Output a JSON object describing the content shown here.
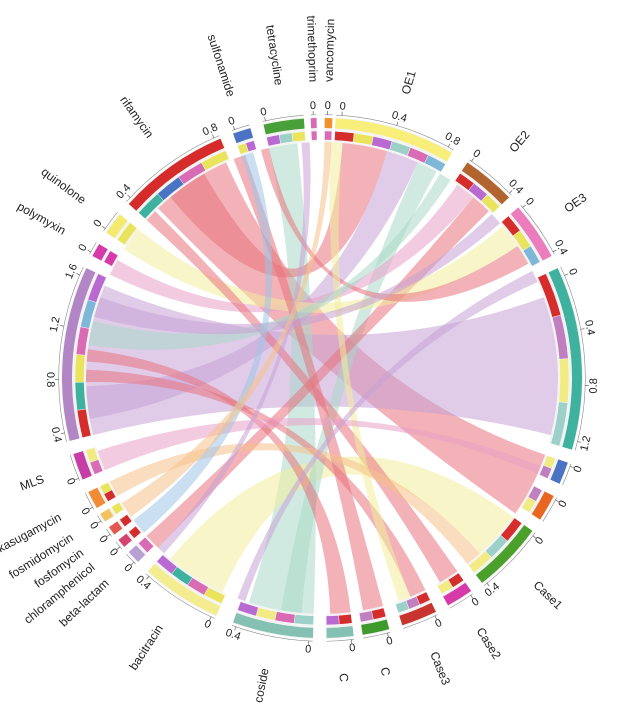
{
  "chart_data": {
    "type": "chord",
    "center": [
      322,
      378
    ],
    "segments": [
      {
        "name": "OE1",
        "start": 3,
        "end": 30,
        "color": "#f7ef7a",
        "stack": [
          "#d42d2b",
          "#e9e45c",
          "#b96ad1",
          "#9dd0c8",
          "#d96bb4",
          "#7fb7d8"
        ],
        "ticks": [
          "0",
          "0.4",
          "0.8"
        ]
      },
      {
        "name": "OE2",
        "start": 34,
        "end": 46,
        "color": "#b2642e",
        "stack": [
          "#d42d2b",
          "#b96ad1",
          "#e9e45c"
        ],
        "ticks": [
          "0",
          "0.4"
        ]
      },
      {
        "name": "OE3",
        "start": 49,
        "end": 62,
        "color": "#ec7dbd",
        "stack": [
          "#d42d2b",
          "#e9e45c",
          "#7fb7d8"
        ],
        "ticks": [
          "0",
          "0.4"
        ]
      },
      {
        "name": "",
        "start": 65,
        "end": 106,
        "color": "#3fb29f",
        "stack": [
          "#d42d2b",
          "#c07fbf",
          "#f2ea83",
          "#9dd0c8"
        ],
        "ticks": [
          "0",
          "0.4",
          "0.8",
          "1.2"
        ]
      },
      {
        "name": "",
        "start": 109,
        "end": 114,
        "color": "#4a73c4",
        "stack": [
          "#f2ea83",
          "#c07fbf"
        ],
        "ticks": [
          "0"
        ]
      },
      {
        "name": "",
        "start": 117,
        "end": 123,
        "color": "#e8661f",
        "stack": [
          "#c07fbf",
          "#f2ea83"
        ],
        "ticks": [
          "0"
        ]
      },
      {
        "name": "Case1",
        "start": 126,
        "end": 142,
        "color": "#4ba02b",
        "stack": [
          "#d42d2b",
          "#9dd0c8",
          "#f2ea83"
        ],
        "ticks": [
          "0",
          "0.4"
        ]
      },
      {
        "name": "Case2",
        "start": 145,
        "end": 151,
        "color": "#d63aa8",
        "stack": [
          "#d42d2b",
          "#f2ea83"
        ],
        "ticks": [
          "0"
        ]
      },
      {
        "name": "Case3",
        "start": 154,
        "end": 162,
        "color": "#c8352f",
        "stack": [
          "#d42d2b",
          "#c07fbf",
          "#9dd0c8"
        ],
        "ticks": [
          "0"
        ]
      },
      {
        "name": "C",
        "start": 165,
        "end": 171,
        "color": "#3f9a2e",
        "stack": [
          "#d42d2b",
          "#c07fbf"
        ],
        "ticks": [
          "0"
        ]
      },
      {
        "name": "C",
        "start": 173,
        "end": 179,
        "color": "#84c1b3",
        "stack": [
          "#d42d2b",
          "#b96ad1"
        ],
        "ticks": [
          "0"
        ]
      },
      {
        "name": "coside",
        "start": 182,
        "end": 200,
        "color": "#84c1b3",
        "stack": [
          "#9dd0c8",
          "#d96bb4",
          "#f2ea83",
          "#b96ad1"
        ],
        "ticks": [
          "0",
          "0.4"
        ]
      },
      {
        "name": "bacitracin",
        "start": 204,
        "end": 222,
        "color": "#f4ed8f",
        "stack": [
          "#e9e45c",
          "#d96bb4",
          "#3fb29f",
          "#b96ad1"
        ],
        "ticks": [
          "0",
          "0.4"
        ]
      },
      {
        "name": "beta-lactam",
        "start": 225,
        "end": 228,
        "color": "#b8a0d3",
        "stack": [
          "#d96bb4"
        ],
        "ticks": [
          "0"
        ]
      },
      {
        "name": "chloramphenicol",
        "start": 229.5,
        "end": 231.5,
        "color": "#d6436c",
        "stack": [
          "#d42d2b"
        ],
        "ticks": [
          "0"
        ]
      },
      {
        "name": "fosfomycin",
        "start": 233,
        "end": 235,
        "color": "#e15850",
        "stack": [
          "#d42d2b"
        ],
        "ticks": [
          "0"
        ]
      },
      {
        "name": "fosmidomycin",
        "start": 236.5,
        "end": 238.5,
        "color": "#f0c35f",
        "stack": [
          "#e9e45c"
        ],
        "ticks": [
          "0"
        ]
      },
      {
        "name": "kasugamycin",
        "start": 240,
        "end": 244,
        "color": "#f28b34",
        "stack": [
          "#d42d2b",
          "#e9e45c"
        ],
        "ticks": [
          "0"
        ]
      },
      {
        "name": "MLS",
        "start": 247,
        "end": 253,
        "color": "#c63da6",
        "stack": [
          "#d96bb4",
          "#f2ea83"
        ],
        "ticks": [
          "0"
        ]
      },
      {
        "name": "",
        "start": 256,
        "end": 295,
        "color": "#b286c4",
        "stack": [
          "#d42d2b",
          "#3fb29f",
          "#e9e45c",
          "#d96bb4",
          "#7fb7d8",
          "#b96ad1"
        ],
        "ticks": [
          "0.4",
          "0.8",
          "1.2",
          "1.6"
        ]
      },
      {
        "name": "polymyxin",
        "start": 298,
        "end": 301,
        "color": "#d63aa8",
        "stack": [
          "#d63aa8"
        ],
        "ticks": [
          "0"
        ]
      },
      {
        "name": "quinolone",
        "start": 304,
        "end": 309,
        "color": "#f4ea6f",
        "stack": [
          "#e9e45c"
        ],
        "ticks": [
          "0"
        ]
      },
      {
        "name": "rifamycin",
        "start": 312,
        "end": 337,
        "color": "#d62b2b",
        "stack": [
          "#3fb29f",
          "#4a73c4",
          "#d96bb4",
          "#e9e45c"
        ],
        "ticks": [
          "0.4",
          "0.8"
        ]
      },
      {
        "name": "sulfonamide",
        "start": 340,
        "end": 344,
        "color": "#4a73c4",
        "stack": [
          "#e9e45c",
          "#b96ad1"
        ],
        "ticks": [
          "0"
        ]
      },
      {
        "name": "tetracycline",
        "start": 347,
        "end": 356,
        "color": "#49a038",
        "stack": [
          "#b96ad1",
          "#9dd0c8",
          "#e9e45c"
        ],
        "ticks": [
          "0"
        ]
      },
      {
        "name": "trimethoprim",
        "start": 357.5,
        "end": 358.8,
        "color": "#d96bb4",
        "stack": [
          "#d96bb4"
        ],
        "ticks": [
          "0"
        ]
      },
      {
        "name": "vancomycin",
        "start": 0.6,
        "end": 2.3,
        "color": "#f0912f",
        "stack": [
          "#d96bb4"
        ],
        "ticks": [
          "0"
        ]
      }
    ],
    "chords": [
      {
        "from": [
          316,
          336
        ],
        "to": [
          109,
          125
        ],
        "color": "#e8737b"
      },
      {
        "from": [
          256,
          293
        ],
        "to": [
          70,
          104
        ],
        "color": "#c7a2d6"
      },
      {
        "from": [
          182,
          198
        ],
        "to": [
          347,
          354
        ],
        "color": "#a9d9c8"
      },
      {
        "from": [
          205,
          220
        ],
        "to": [
          126,
          138
        ],
        "color": "#f2ec9d"
      },
      {
        "from": [
          5,
          16
        ],
        "to": [
          320,
          330
        ],
        "color": "#e8737b"
      },
      {
        "from": [
          16,
          24
        ],
        "to": [
          260,
          268
        ],
        "color": "#c7a2d6"
      },
      {
        "from": [
          24,
          29
        ],
        "to": [
          185,
          190
        ],
        "color": "#a9d9c8"
      },
      {
        "from": [
          35,
          40
        ],
        "to": [
          296,
          300
        ],
        "color": "#e9a0c8"
      },
      {
        "from": [
          40,
          45
        ],
        "to": [
          224,
          228
        ],
        "color": "#e8737b"
      },
      {
        "from": [
          50,
          56
        ],
        "to": [
          303,
          309
        ],
        "color": "#f2ec9d"
      },
      {
        "from": [
          56,
          61
        ],
        "to": [
          345,
          347
        ],
        "color": "#e8737b"
      },
      {
        "from": [
          145,
          150
        ],
        "to": [
          312,
          315
        ],
        "color": "#e8737b"
      },
      {
        "from": [
          154,
          158
        ],
        "to": [
          269,
          272
        ],
        "color": "#e8737b"
      },
      {
        "from": [
          158,
          161
        ],
        "to": [
          2,
          5
        ],
        "color": "#f2ec9d"
      },
      {
        "from": [
          165,
          170
        ],
        "to": [
          338,
          341
        ],
        "color": "#e8737b"
      },
      {
        "from": [
          173,
          178
        ],
        "to": [
          274,
          277
        ],
        "color": "#e8737b"
      },
      {
        "from": [
          240,
          244
        ],
        "to": [
          138,
          142
        ],
        "color": "#f5c18b"
      },
      {
        "from": [
          247,
          252
        ],
        "to": [
          112,
          114
        ],
        "color": "#e9a0c8"
      },
      {
        "from": [
          199,
          201
        ],
        "to": [
          63,
          66
        ],
        "color": "#c7a2d6"
      },
      {
        "from": [
          222,
          224
        ],
        "to": [
          355,
          357
        ],
        "color": "#c7a2d6"
      },
      {
        "from": [
          278,
          284
        ],
        "to": [
          30,
          33
        ],
        "color": "#a9d9c8"
      },
      {
        "from": [
          285,
          290
        ],
        "to": [
          46,
          49
        ],
        "color": "#c7a2d6"
      },
      {
        "from": [
          340,
          343
        ],
        "to": [
          229,
          233
        ],
        "color": "#9fc5e8"
      },
      {
        "from": [
          0.6,
          2.3
        ],
        "to": [
          234,
          238
        ],
        "color": "#f5c18b"
      }
    ]
  }
}
